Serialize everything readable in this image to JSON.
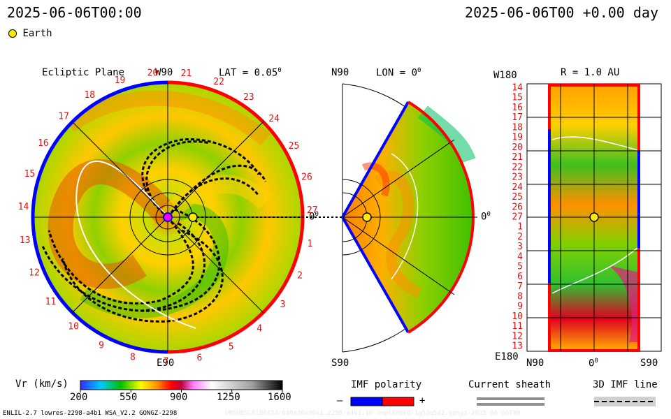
{
  "header": {
    "left_timestamp": "2025-06-06T00:00",
    "right_timestamp": "2025-06-06T00 +0.00 day",
    "legend_label": "Earth"
  },
  "ecliptic": {
    "title": "Ecliptic Plane",
    "top_label": "W90",
    "bottom_label": "E90",
    "lat_label": "LAT = 0.05",
    "lat_unit": "0",
    "side_label": "0",
    "side_unit": "0",
    "sector_numbers": [
      "20",
      "21",
      "22",
      "23",
      "24",
      "25",
      "26",
      "27",
      "1",
      "2",
      "3",
      "4",
      "5",
      "6",
      "7",
      "8",
      "9",
      "10",
      "11",
      "12",
      "13",
      "14",
      "15",
      "16",
      "17",
      "18",
      "19"
    ]
  },
  "meridional": {
    "top_label": "N90",
    "lon_label": "LON = 0",
    "lon_unit": "0",
    "bottom_label": "S90",
    "right_label": "0",
    "right_unit": "0"
  },
  "radial": {
    "top_left_label": "W180",
    "title": "R = 1.0 AU",
    "bottom_left_label": "E180",
    "x_tick_labels": [
      "N90",
      "0",
      "S90"
    ],
    "x_zero_unit": "0",
    "y_tick_labels": [
      "14",
      "15",
      "16",
      "17",
      "18",
      "19",
      "20",
      "21",
      "22",
      "23",
      "24",
      "25",
      "26",
      "27",
      "1",
      "2",
      "3",
      "4",
      "5",
      "6",
      "7",
      "8",
      "9",
      "10",
      "11",
      "12",
      "13"
    ]
  },
  "colorbar": {
    "label": "Vr (km/s)",
    "ticks": [
      "200",
      "550",
      "900",
      "1250",
      "1600"
    ],
    "colors": [
      "#3030ff",
      "#00c8ff",
      "#00c000",
      "#ffff00",
      "#ff9000",
      "#ff0000",
      "#c00040",
      "#ff80ff",
      "#ffffff",
      "#a0a0a0",
      "#000000"
    ]
  },
  "imf_legend": {
    "title": "IMF polarity",
    "minus": "–",
    "plus": "+",
    "negative_color": "#0000ff",
    "positive_color": "#ff0000"
  },
  "sheath_legend": {
    "title": "Current sheath"
  },
  "imf_line_legend": {
    "title": "3D IMF line"
  },
  "footer": {
    "model_info": "ENLIL-2.7 lowres-2298-a4b1 WSA_V2.2 GONGZ-2298",
    "run_info": "UNSUBSCRIBE424/640x30x90x1.2298-a4b1.16-noplanned-1g53q5d2.gongz-2025-06-06T00"
  },
  "chart_data": [
    {
      "type": "heatmap",
      "title": "Ecliptic Plane",
      "description_param": "LAT = 0.05",
      "quantity": "Vr (km/s)",
      "range": [
        200,
        1600
      ],
      "earth": {
        "longitude_deg": 0,
        "r_au": 1.0
      }
    },
    {
      "type": "heatmap",
      "quantity": "Vr (km/s)",
      "description_param": "LON = 0",
      "range": [
        200,
        1600
      ],
      "latitude_extent": [
        "N90",
        "S90"
      ]
    },
    {
      "type": "heatmap",
      "title": "R = 1.0 AU",
      "quantity": "Vr (km/s)",
      "range": [
        200,
        1600
      ],
      "x_axis": [
        "N90",
        "0",
        "S90"
      ],
      "y_axis_range": [
        "W180",
        "E180"
      ]
    }
  ]
}
